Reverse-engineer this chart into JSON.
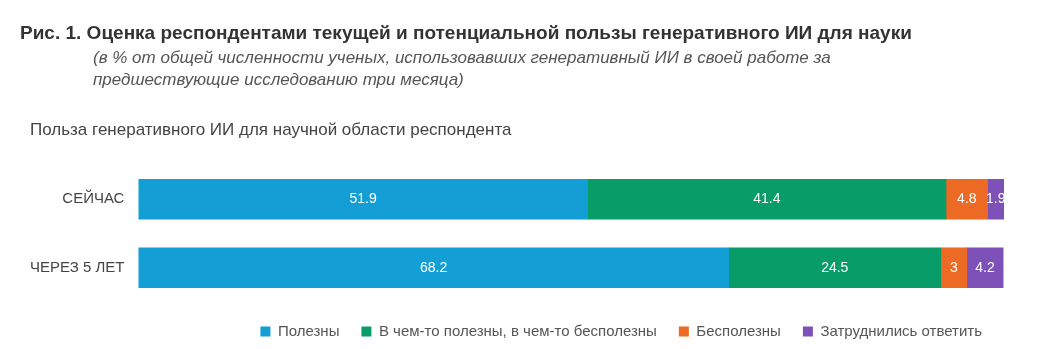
{
  "chart_data": {
    "type": "bar",
    "orientation": "horizontal",
    "stacked": true,
    "title": "Рис. 1. Оценка респондентами текущей и потенциальной пользы генеративного ИИ для науки",
    "subtitle": "(в % от общей численности ученых, использовавших генеративный ИИ в своей работе за предшествующие исследованию три месяца)",
    "annotations": [
      "Польза генеративного ИИ для научной области респондента"
    ],
    "categories": [
      "СЕЙЧАС",
      "ЧЕРЕЗ 5 ЛЕТ"
    ],
    "series": [
      {
        "name": "Полезны",
        "color": "#139fd6",
        "values": [
          51.9,
          68.2
        ]
      },
      {
        "name": "В чем-то полезны, в чем-то бесполезны",
        "color": "#079c68",
        "values": [
          41.4,
          24.5
        ]
      },
      {
        "name": "Бесполезны",
        "color": "#ec6a23",
        "values": [
          4.8,
          3
        ]
      },
      {
        "name": "Затруднились ответить",
        "color": "#7e51b8",
        "values": [
          1.9,
          4.2
        ]
      }
    ],
    "data_labels": true,
    "legend": "bottom",
    "tick_labels": "y"
  }
}
